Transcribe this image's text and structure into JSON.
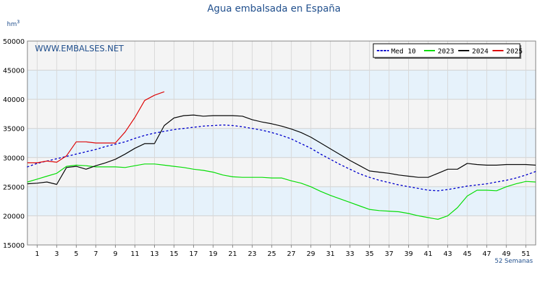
{
  "chart_data": {
    "type": "line",
    "title": "Agua embalsada en España",
    "ylabel": "hm",
    "ylabel_sup": "3",
    "xlabel": "52 Semanas",
    "watermark": "WWW.EMBALSES.NET",
    "xlim": [
      0,
      52
    ],
    "ylim": [
      15000,
      50000
    ],
    "yticks": [
      "15000",
      "20000",
      "25000",
      "30000",
      "35000",
      "40000",
      "45000",
      "50000"
    ],
    "xticks": [
      "1",
      "3",
      "5",
      "7",
      "9",
      "11",
      "13",
      "15",
      "17",
      "19",
      "21",
      "23",
      "25",
      "27",
      "29",
      "31",
      "33",
      "35",
      "37",
      "39",
      "41",
      "43",
      "45",
      "47",
      "49",
      "51"
    ],
    "legend_position": "top-right",
    "grid": true,
    "series": [
      {
        "name": "Med 10",
        "color": "#0000cc",
        "style": "dotted",
        "points": [
          [
            0,
            28400
          ],
          [
            1,
            29000
          ],
          [
            2,
            29400
          ],
          [
            3,
            29800
          ],
          [
            4,
            30200
          ],
          [
            5,
            30600
          ],
          [
            6,
            31000
          ],
          [
            7,
            31400
          ],
          [
            8,
            31900
          ],
          [
            9,
            32300
          ],
          [
            10,
            32700
          ],
          [
            11,
            33300
          ],
          [
            12,
            33800
          ],
          [
            13,
            34200
          ],
          [
            14,
            34500
          ],
          [
            15,
            34800
          ],
          [
            16,
            35000
          ],
          [
            17,
            35200
          ],
          [
            18,
            35400
          ],
          [
            19,
            35500
          ],
          [
            20,
            35600
          ],
          [
            21,
            35500
          ],
          [
            22,
            35300
          ],
          [
            23,
            35000
          ],
          [
            24,
            34700
          ],
          [
            25,
            34300
          ],
          [
            26,
            33800
          ],
          [
            27,
            33200
          ],
          [
            28,
            32400
          ],
          [
            29,
            31600
          ],
          [
            30,
            30600
          ],
          [
            31,
            29700
          ],
          [
            32,
            28800
          ],
          [
            33,
            28000
          ],
          [
            34,
            27200
          ],
          [
            35,
            26600
          ],
          [
            36,
            26100
          ],
          [
            37,
            25700
          ],
          [
            38,
            25300
          ],
          [
            39,
            25000
          ],
          [
            40,
            24700
          ],
          [
            41,
            24400
          ],
          [
            42,
            24300
          ],
          [
            43,
            24500
          ],
          [
            44,
            24800
          ],
          [
            45,
            25100
          ],
          [
            46,
            25300
          ],
          [
            47,
            25500
          ],
          [
            48,
            25800
          ],
          [
            49,
            26100
          ],
          [
            50,
            26500
          ],
          [
            51,
            27000
          ],
          [
            52,
            27600
          ]
        ]
      },
      {
        "name": "2023",
        "color": "#00dd00",
        "style": "solid",
        "points": [
          [
            0,
            25800
          ],
          [
            1,
            26300
          ],
          [
            2,
            26800
          ],
          [
            3,
            27300
          ],
          [
            4,
            28500
          ],
          [
            5,
            28700
          ],
          [
            6,
            28600
          ],
          [
            7,
            28400
          ],
          [
            8,
            28400
          ],
          [
            9,
            28400
          ],
          [
            10,
            28300
          ],
          [
            11,
            28600
          ],
          [
            12,
            28900
          ],
          [
            13,
            28900
          ],
          [
            14,
            28700
          ],
          [
            15,
            28500
          ],
          [
            16,
            28300
          ],
          [
            17,
            28000
          ],
          [
            18,
            27800
          ],
          [
            19,
            27500
          ],
          [
            20,
            27000
          ],
          [
            21,
            26700
          ],
          [
            22,
            26600
          ],
          [
            23,
            26600
          ],
          [
            24,
            26600
          ],
          [
            25,
            26500
          ],
          [
            26,
            26500
          ],
          [
            27,
            26000
          ],
          [
            28,
            25600
          ],
          [
            29,
            25000
          ],
          [
            30,
            24200
          ],
          [
            31,
            23500
          ],
          [
            32,
            22900
          ],
          [
            33,
            22300
          ],
          [
            34,
            21700
          ],
          [
            35,
            21100
          ],
          [
            36,
            20900
          ],
          [
            37,
            20800
          ],
          [
            38,
            20700
          ],
          [
            39,
            20400
          ],
          [
            40,
            20000
          ],
          [
            41,
            19700
          ],
          [
            42,
            19400
          ],
          [
            43,
            20000
          ],
          [
            44,
            21400
          ],
          [
            45,
            23400
          ],
          [
            46,
            24400
          ],
          [
            47,
            24400
          ],
          [
            48,
            24300
          ],
          [
            49,
            25000
          ],
          [
            50,
            25500
          ],
          [
            51,
            25900
          ],
          [
            52,
            25800
          ]
        ]
      },
      {
        "name": "2024",
        "color": "#000000",
        "style": "solid",
        "points": [
          [
            0,
            25500
          ],
          [
            1,
            25600
          ],
          [
            2,
            25800
          ],
          [
            3,
            25400
          ],
          [
            4,
            28300
          ],
          [
            5,
            28500
          ],
          [
            6,
            28000
          ],
          [
            7,
            28600
          ],
          [
            8,
            29100
          ],
          [
            9,
            29700
          ],
          [
            10,
            30600
          ],
          [
            11,
            31600
          ],
          [
            12,
            32400
          ],
          [
            13,
            32400
          ],
          [
            14,
            35500
          ],
          [
            15,
            36800
          ],
          [
            16,
            37200
          ],
          [
            17,
            37300
          ],
          [
            18,
            37100
          ],
          [
            19,
            37200
          ],
          [
            20,
            37200
          ],
          [
            21,
            37200
          ],
          [
            22,
            37100
          ],
          [
            23,
            36500
          ],
          [
            24,
            36100
          ],
          [
            25,
            35800
          ],
          [
            26,
            35400
          ],
          [
            27,
            34900
          ],
          [
            28,
            34300
          ],
          [
            29,
            33500
          ],
          [
            30,
            32500
          ],
          [
            31,
            31500
          ],
          [
            32,
            30500
          ],
          [
            33,
            29500
          ],
          [
            34,
            28600
          ],
          [
            35,
            27700
          ],
          [
            36,
            27500
          ],
          [
            37,
            27300
          ],
          [
            38,
            27000
          ],
          [
            39,
            26800
          ],
          [
            40,
            26600
          ],
          [
            41,
            26600
          ],
          [
            42,
            27300
          ],
          [
            43,
            28000
          ],
          [
            44,
            28000
          ],
          [
            45,
            29000
          ],
          [
            46,
            28800
          ],
          [
            47,
            28700
          ],
          [
            48,
            28700
          ],
          [
            49,
            28800
          ],
          [
            50,
            28800
          ],
          [
            51,
            28800
          ],
          [
            52,
            28700
          ]
        ]
      },
      {
        "name": "2025",
        "color": "#dd0000",
        "style": "solid",
        "points": [
          [
            0,
            29100
          ],
          [
            1,
            29100
          ],
          [
            2,
            29400
          ],
          [
            3,
            29200
          ],
          [
            4,
            30300
          ],
          [
            5,
            32700
          ],
          [
            6,
            32700
          ],
          [
            7,
            32500
          ],
          [
            8,
            32500
          ],
          [
            9,
            32500
          ],
          [
            10,
            34400
          ],
          [
            11,
            36900
          ],
          [
            12,
            39800
          ],
          [
            13,
            40700
          ],
          [
            14,
            41300
          ]
        ]
      }
    ]
  }
}
